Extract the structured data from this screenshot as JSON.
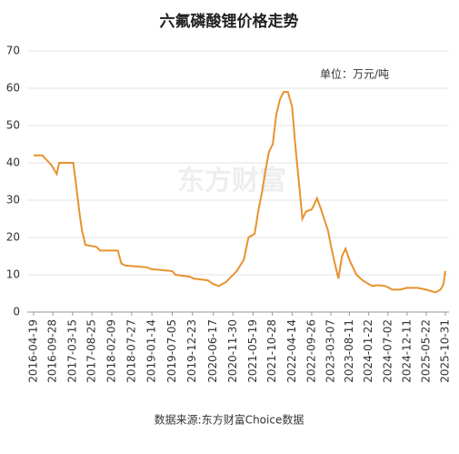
{
  "chart_data": {
    "type": "line",
    "title": "六氟磷酸锂价格走势",
    "unit_note": "单位：万元/吨",
    "source": "数据来源:东方财富Choice数据",
    "watermark": "东方财富",
    "x": [
      "2016-04-19",
      "2016-07-01",
      "2016-08-01",
      "2016-09-15",
      "2016-11-01",
      "2016-11-20",
      "2016-12-01",
      "2017-03-20",
      "2017-04-10",
      "2017-05-10",
      "2017-06-01",
      "2017-07-01",
      "2017-10-01",
      "2017-11-01",
      "2018-04-01",
      "2018-05-01",
      "2018-06-01",
      "2018-12-01",
      "2019-01-14",
      "2019-07-05",
      "2019-08-01",
      "2019-12-01",
      "2020-01-01",
      "2020-05-01",
      "2020-06-17",
      "2020-08-01",
      "2020-10-01",
      "2020-11-15",
      "2021-01-01",
      "2021-03-01",
      "2021-04-10",
      "2021-06-01",
      "2021-07-01",
      "2021-08-01",
      "2021-09-01",
      "2021-10-01",
      "2021-11-01",
      "2021-12-01",
      "2022-01-01",
      "2022-02-01",
      "2022-03-10",
      "2022-04-14",
      "2022-05-10",
      "2022-06-10",
      "2022-07-10",
      "2022-08-10",
      "2022-09-26",
      "2022-10-20",
      "2022-11-10",
      "2022-12-10",
      "2023-01-10",
      "2023-02-10",
      "2023-03-07",
      "2023-04-10",
      "2023-05-10",
      "2023-06-10",
      "2023-07-10",
      "2023-08-11",
      "2023-09-10",
      "2023-10-10",
      "2023-12-01",
      "2024-01-22",
      "2024-02-20",
      "2024-04-10",
      "2024-06-10",
      "2024-08-10",
      "2024-10-10",
      "2024-12-11",
      "2025-03-10",
      "2025-05-22",
      "2025-08-10",
      "2025-09-20",
      "2025-10-15",
      "2025-10-31"
    ],
    "series": [
      {
        "name": "六氟磷酸锂",
        "color": "#e8922e",
        "values": [
          42,
          42,
          41,
          39.5,
          37,
          40,
          40,
          40,
          35,
          27,
          22,
          18,
          17.5,
          16.5,
          16.5,
          13,
          12.5,
          12,
          11.5,
          11,
          10,
          9.5,
          9,
          8.5,
          7.5,
          7,
          8,
          9.5,
          11,
          14,
          20,
          21,
          27,
          32,
          38,
          43,
          45,
          53,
          57,
          59,
          59,
          55,
          45,
          35,
          25,
          27,
          27.5,
          29,
          30.5,
          28,
          25,
          22,
          18,
          13,
          9,
          15,
          17,
          14,
          12,
          10,
          8.5,
          7.5,
          7,
          7.2,
          7,
          6,
          6,
          6.5,
          6.5,
          6,
          5.3,
          6,
          7.5,
          11
        ]
      }
    ],
    "xlim": [
      "2016-04-19",
      "2025-10-31"
    ],
    "xticks": [
      "2016-04-19",
      "2016-09-28",
      "2017-03-15",
      "2017-08-25",
      "2018-02-09",
      "2018-07-27",
      "2019-01-14",
      "2019-07-05",
      "2019-12-23",
      "2020-06-17",
      "2020-11-30",
      "2021-05-19",
      "2021-10-28",
      "2022-04-14",
      "2022-09-26",
      "2023-03-07",
      "2023-08-11",
      "2024-01-22",
      "2024-07-02",
      "2024-12-11",
      "2025-05-22",
      "2025-10-31"
    ],
    "ylim": [
      0,
      70
    ],
    "yticks": [
      0,
      10,
      20,
      30,
      40,
      50,
      60,
      70
    ],
    "grid": true
  }
}
